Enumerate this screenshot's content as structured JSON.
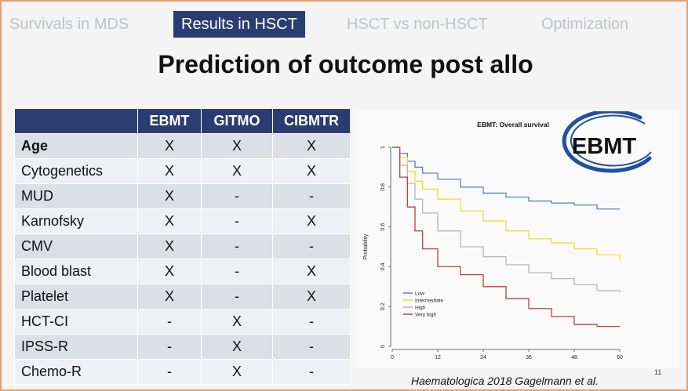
{
  "tabs": [
    {
      "label": "Survivals in MDS",
      "active": false
    },
    {
      "label": "Results in HSCT",
      "active": true
    },
    {
      "label": "HSCT vs non-HSCT",
      "active": false
    },
    {
      "label": "Optimization",
      "active": false
    }
  ],
  "slide_title": "Prediction of outcome post allo",
  "table": {
    "headers": [
      "",
      "EBMT",
      "GITMO",
      "CIBMTR"
    ],
    "rows": [
      {
        "label": "Age",
        "bold": true,
        "cells": [
          "X",
          "X",
          "X"
        ]
      },
      {
        "label": "Cytogenetics",
        "bold": false,
        "cells": [
          "X",
          "X",
          "X"
        ]
      },
      {
        "label": "MUD",
        "bold": false,
        "cells": [
          "X",
          "-",
          "-"
        ]
      },
      {
        "label": "Karnofsky",
        "bold": false,
        "cells": [
          "X",
          "-",
          "X"
        ]
      },
      {
        "label": "CMV",
        "bold": false,
        "cells": [
          "X",
          "-",
          "-"
        ]
      },
      {
        "label": "Blood blast",
        "bold": false,
        "cells": [
          "X",
          "-",
          "X"
        ]
      },
      {
        "label": "Platelet",
        "bold": false,
        "cells": [
          "X",
          "-",
          "X"
        ]
      },
      {
        "label": "HCT-CI",
        "bold": false,
        "cells": [
          "-",
          "X",
          "-"
        ]
      },
      {
        "label": "IPSS-R",
        "bold": false,
        "cells": [
          "-",
          "X",
          "-"
        ]
      },
      {
        "label": "Chemo-R",
        "bold": false,
        "cells": [
          "-",
          "X",
          "-"
        ]
      }
    ]
  },
  "logo_text": "EBMT",
  "citation": "Haematologica 2018 Gagelmann et al.",
  "page_number": "11",
  "colors": {
    "tab_active": "#2a3d73",
    "low": "#5b7fc4",
    "intermediate": "#f0dc3a",
    "high": "#b8b8b8",
    "very_high": "#b8453c"
  },
  "chart_data": {
    "type": "line",
    "title": "EBMT: Overall survival",
    "ylabel": "Probability",
    "xlabel": "",
    "xlim": [
      0,
      60
    ],
    "ylim": [
      0,
      1
    ],
    "xticks": [
      0,
      12,
      24,
      36,
      48,
      60
    ],
    "yticks": [
      0.0,
      0.2,
      0.4,
      0.6,
      0.8,
      1.0
    ],
    "legend_position": "bottom-left",
    "series": [
      {
        "name": "Low",
        "color": "#5b7fc4",
        "points": [
          [
            0,
            1.0
          ],
          [
            2,
            0.97
          ],
          [
            4,
            0.93
          ],
          [
            6,
            0.9
          ],
          [
            8,
            0.87
          ],
          [
            12,
            0.84
          ],
          [
            18,
            0.8
          ],
          [
            24,
            0.77
          ],
          [
            30,
            0.75
          ],
          [
            36,
            0.73
          ],
          [
            42,
            0.72
          ],
          [
            48,
            0.71
          ],
          [
            54,
            0.69
          ],
          [
            60,
            0.69
          ]
        ]
      },
      {
        "name": "Intermediate",
        "color": "#f0dc3a",
        "points": [
          [
            0,
            1.0
          ],
          [
            2,
            0.95
          ],
          [
            4,
            0.88
          ],
          [
            6,
            0.83
          ],
          [
            8,
            0.79
          ],
          [
            12,
            0.74
          ],
          [
            18,
            0.68
          ],
          [
            24,
            0.63
          ],
          [
            30,
            0.58
          ],
          [
            36,
            0.54
          ],
          [
            42,
            0.52
          ],
          [
            48,
            0.49
          ],
          [
            54,
            0.46
          ],
          [
            60,
            0.43
          ]
        ]
      },
      {
        "name": "High",
        "color": "#b8b8b8",
        "points": [
          [
            0,
            1.0
          ],
          [
            2,
            0.91
          ],
          [
            4,
            0.82
          ],
          [
            6,
            0.74
          ],
          [
            8,
            0.67
          ],
          [
            12,
            0.58
          ],
          [
            18,
            0.5
          ],
          [
            24,
            0.45
          ],
          [
            30,
            0.41
          ],
          [
            36,
            0.37
          ],
          [
            42,
            0.34
          ],
          [
            48,
            0.31
          ],
          [
            54,
            0.28
          ],
          [
            60,
            0.27
          ]
        ]
      },
      {
        "name": "Very high",
        "color": "#b8453c",
        "points": [
          [
            0,
            1.0
          ],
          [
            2,
            0.85
          ],
          [
            4,
            0.7
          ],
          [
            6,
            0.58
          ],
          [
            8,
            0.49
          ],
          [
            12,
            0.4
          ],
          [
            18,
            0.36
          ],
          [
            24,
            0.3
          ],
          [
            30,
            0.24
          ],
          [
            36,
            0.19
          ],
          [
            42,
            0.15
          ],
          [
            48,
            0.11
          ],
          [
            54,
            0.1
          ],
          [
            60,
            0.1
          ]
        ]
      }
    ]
  }
}
